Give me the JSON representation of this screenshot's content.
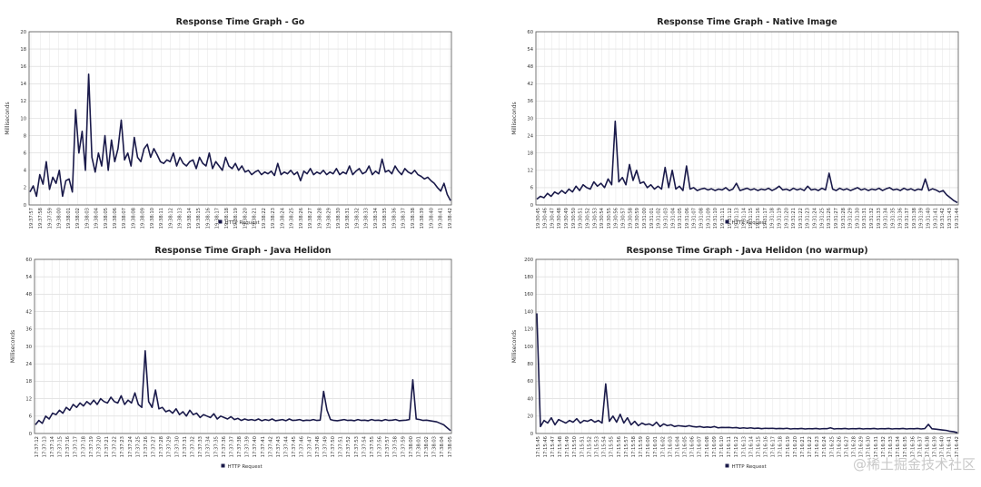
{
  "chart_data": [
    {
      "type": "line",
      "title": "Response Time Graph - Go",
      "ylabel": "Milliseconds",
      "ylim": [
        0,
        20
      ],
      "yticks": [
        0,
        2,
        4,
        6,
        8,
        10,
        12,
        14,
        16,
        18,
        20
      ],
      "xticks": [
        "19:37:57",
        "19:37:58",
        "19:37:59",
        "19:38:00",
        "19:38:01",
        "19:38:02",
        "19:38:03",
        "19:38:04",
        "19:38:05",
        "19:38:06",
        "19:38:07",
        "19:38:08",
        "19:38:09",
        "19:38:10",
        "19:38:11",
        "19:38:12",
        "19:38:13",
        "19:38:14",
        "19:38:15",
        "19:38:16",
        "19:38:17",
        "19:38:18",
        "19:38:19",
        "19:38:20",
        "19:38:21",
        "19:38:22",
        "19:38:23",
        "19:38:24",
        "19:38:25",
        "19:38:26",
        "19:38:27",
        "19:38:28",
        "19:38:29",
        "19:38:30",
        "19:38:31",
        "19:38:32",
        "19:38:33",
        "19:38:34",
        "19:38:35",
        "19:38:36",
        "19:38:37",
        "19:38:38",
        "19:38:39",
        "19:38:40",
        "19:38:41",
        "19:38:42"
      ],
      "legend": "HTTP Request",
      "series": [
        {
          "name": "HTTP Request",
          "color": "#1a1a4a",
          "values": [
            1.5,
            2.2,
            1.0,
            3.5,
            2.4,
            5.0,
            1.8,
            3.2,
            2.5,
            4.0,
            1.0,
            2.8,
            3.0,
            1.5,
            11.0,
            6.0,
            8.5,
            4.0,
            15.1,
            5.5,
            3.8,
            6.0,
            4.5,
            8.0,
            4.0,
            7.5,
            5.0,
            6.5,
            9.8,
            5.2,
            6.0,
            4.5,
            7.8,
            5.5,
            5.0,
            6.5,
            7.0,
            5.5,
            6.5,
            5.8,
            5.0,
            4.8,
            5.2,
            5.0,
            6.0,
            4.5,
            5.5,
            4.8,
            4.5,
            5.0,
            5.2,
            4.2,
            5.5,
            4.8,
            4.5,
            6.0,
            4.2,
            5.0,
            4.5,
            4.0,
            5.5,
            4.5,
            4.2,
            4.8,
            4.0,
            4.5,
            3.8,
            4.0,
            3.5,
            3.8,
            4.0,
            3.5,
            3.8,
            3.6,
            3.9,
            3.4,
            4.8,
            3.5,
            3.8,
            3.6,
            4.0,
            3.5,
            3.8,
            2.8,
            3.9,
            3.6,
            4.2,
            3.5,
            3.8,
            3.6,
            4.0,
            3.5,
            3.8,
            3.6,
            4.2,
            3.5,
            3.8,
            3.6,
            4.5,
            3.5,
            3.9,
            4.2,
            3.6,
            3.8,
            4.5,
            3.5,
            3.9,
            3.6,
            5.3,
            3.8,
            4.0,
            3.6,
            4.5,
            3.9,
            3.5,
            4.2,
            3.8,
            3.6,
            4.0,
            3.5,
            3.3,
            3.0,
            3.2,
            2.8,
            2.5,
            2.0,
            1.6,
            2.5,
            1.2,
            0.5
          ]
        }
      ]
    },
    {
      "type": "line",
      "title": "Response Time Graph - Native Image",
      "ylabel": "Milliseconds",
      "ylim": [
        0,
        60
      ],
      "yticks": [
        0,
        6,
        12,
        18,
        24,
        30,
        36,
        42,
        48,
        54,
        60
      ],
      "xticks": [
        "19:30:45",
        "19:30:46",
        "19:30:47",
        "19:30:48",
        "19:30:49",
        "19:30:50",
        "19:30:51",
        "19:30:52",
        "19:30:53",
        "19:30:54",
        "19:30:55",
        "19:30:56",
        "19:30:57",
        "19:30:58",
        "19:30:59",
        "19:31:00",
        "19:31:01",
        "19:31:02",
        "19:31:03",
        "19:31:04",
        "19:31:05",
        "19:31:06",
        "19:31:07",
        "19:31:08",
        "19:31:09",
        "19:31:10",
        "19:31:11",
        "19:31:12",
        "19:31:13",
        "19:31:14",
        "19:31:15",
        "19:31:16",
        "19:31:17",
        "19:31:18",
        "19:31:19",
        "19:31:20",
        "19:31:21",
        "19:31:22",
        "19:31:23",
        "19:31:24",
        "19:31:25",
        "19:31:26",
        "19:31:27",
        "19:31:28",
        "19:31:29",
        "19:31:30",
        "19:31:31",
        "19:31:32",
        "19:31:33",
        "19:31:34",
        "19:31:35",
        "19:31:36",
        "19:31:37",
        "19:31:38",
        "19:31:39",
        "19:31:40",
        "19:31:41",
        "19:31:42",
        "19:31:43",
        "19:31:44"
      ],
      "legend": "HTTP Request",
      "series": [
        {
          "name": "HTTP Request",
          "color": "#1a1a4a",
          "values": [
            2.0,
            3.0,
            2.5,
            4.0,
            3.0,
            4.5,
            3.8,
            5.0,
            4.0,
            5.5,
            4.5,
            6.5,
            5.0,
            7.0,
            6.0,
            5.5,
            8.0,
            6.5,
            7.5,
            6.0,
            9.0,
            7.0,
            29.0,
            8.0,
            9.5,
            7.0,
            14.0,
            8.5,
            12.0,
            7.5,
            8.0,
            6.0,
            7.0,
            5.5,
            6.5,
            5.5,
            13.0,
            6.0,
            12.0,
            5.5,
            6.5,
            5.0,
            13.5,
            5.5,
            6.0,
            5.0,
            5.5,
            5.8,
            5.2,
            5.6,
            5.0,
            5.5,
            5.2,
            6.0,
            5.0,
            5.5,
            7.5,
            5.0,
            5.4,
            5.8,
            5.2,
            5.6,
            5.0,
            5.5,
            5.2,
            5.8,
            5.0,
            5.6,
            6.5,
            5.2,
            5.5,
            5.0,
            5.8,
            5.2,
            5.6,
            5.0,
            6.5,
            5.2,
            5.5,
            5.0,
            5.8,
            5.2,
            11.0,
            5.5,
            5.0,
            5.8,
            5.2,
            5.6,
            5.0,
            5.5,
            6.0,
            5.2,
            5.6,
            5.0,
            5.5,
            5.2,
            5.8,
            5.0,
            5.6,
            6.0,
            5.2,
            5.5,
            5.0,
            5.8,
            5.2,
            5.6,
            5.0,
            5.5,
            5.2,
            9.0,
            5.0,
            5.6,
            5.2,
            4.5,
            5.0,
            3.5,
            2.5,
            1.5,
            0.8
          ]
        }
      ]
    },
    {
      "type": "line",
      "title": "Response Time Graph - Java Helidon",
      "ylabel": "Milliseconds",
      "ylim": [
        0,
        60
      ],
      "yticks": [
        0,
        6,
        12,
        18,
        24,
        30,
        36,
        42,
        48,
        54,
        60
      ],
      "xticks": [
        "17:37:12",
        "17:37:13",
        "17:37:14",
        "17:37:15",
        "17:37:16",
        "17:37:17",
        "17:37:18",
        "17:37:19",
        "17:37:20",
        "17:37:21",
        "17:37:22",
        "17:37:23",
        "17:37:24",
        "17:37:25",
        "17:37:26",
        "17:37:27",
        "17:37:28",
        "17:37:29",
        "17:37:30",
        "17:37:31",
        "17:37:32",
        "17:37:33",
        "17:37:34",
        "17:37:35",
        "17:37:36",
        "17:37:37",
        "17:37:38",
        "17:37:39",
        "17:37:40",
        "17:37:41",
        "17:37:42",
        "17:37:43",
        "17:37:44",
        "17:37:45",
        "17:37:46",
        "17:37:47",
        "17:37:48",
        "17:37:49",
        "17:37:50",
        "17:37:51",
        "17:37:52",
        "17:37:53",
        "17:37:54",
        "17:37:55",
        "17:37:56",
        "17:37:57",
        "17:37:58",
        "17:37:59",
        "17:38:00",
        "17:38:01",
        "17:38:02",
        "17:38:03",
        "17:38:04",
        "17:38:05"
      ],
      "legend": "HTTP Request",
      "series": [
        {
          "name": "HTTP Request",
          "color": "#1a1a4a",
          "values": [
            3.0,
            4.5,
            3.5,
            6.0,
            5.0,
            7.0,
            6.5,
            8.0,
            7.0,
            9.0,
            8.0,
            10.0,
            9.0,
            10.5,
            9.5,
            11.0,
            10.0,
            11.5,
            10.0,
            12.0,
            11.0,
            10.5,
            12.5,
            11.0,
            10.5,
            13.0,
            10.0,
            11.5,
            10.5,
            14.0,
            10.0,
            9.0,
            28.5,
            11.0,
            9.0,
            15.0,
            8.5,
            9.0,
            7.5,
            8.0,
            7.0,
            8.5,
            6.5,
            7.5,
            6.0,
            8.0,
            6.5,
            7.0,
            5.5,
            6.5,
            6.0,
            5.5,
            6.8,
            5.0,
            6.0,
            5.5,
            5.0,
            5.8,
            4.8,
            5.2,
            4.5,
            5.0,
            4.6,
            4.8,
            4.5,
            5.0,
            4.4,
            4.8,
            4.5,
            5.0,
            4.4,
            4.6,
            4.8,
            4.4,
            5.0,
            4.5,
            4.6,
            4.8,
            4.4,
            4.6,
            4.5,
            4.8,
            4.5,
            4.6,
            14.5,
            8.0,
            4.8,
            4.5,
            4.4,
            4.6,
            4.8,
            4.5,
            4.6,
            4.4,
            4.8,
            4.5,
            4.6,
            4.4,
            4.8,
            4.5,
            4.6,
            4.4,
            4.8,
            4.5,
            4.6,
            4.8,
            4.4,
            4.5,
            4.6,
            4.8,
            18.5,
            5.0,
            4.8,
            4.5,
            4.6,
            4.4,
            4.2,
            4.0,
            3.5,
            3.0,
            2.0,
            1.0
          ]
        }
      ]
    },
    {
      "type": "line",
      "title": "Response Time Graph - Java Helidon (no warmup)",
      "ylabel": "Milliseconds",
      "ylim": [
        0,
        200
      ],
      "yticks": [
        0,
        20,
        40,
        60,
        80,
        100,
        120,
        140,
        160,
        180,
        200
      ],
      "xticks": [
        "17:15:45",
        "17:15:46",
        "17:15:47",
        "17:15:48",
        "17:15:49",
        "17:15:50",
        "17:15:51",
        "17:15:52",
        "17:15:53",
        "17:15:54",
        "17:15:55",
        "17:15:56",
        "17:15:57",
        "17:15:58",
        "17:15:59",
        "17:16:00",
        "17:16:01",
        "17:16:02",
        "17:16:03",
        "17:16:04",
        "17:16:05",
        "17:16:06",
        "17:16:07",
        "17:16:08",
        "17:16:09",
        "17:16:10",
        "17:16:11",
        "17:16:12",
        "17:16:13",
        "17:16:14",
        "17:16:15",
        "17:16:16",
        "17:16:17",
        "17:16:18",
        "17:16:19",
        "17:16:20",
        "17:16:21",
        "17:16:22",
        "17:16:23",
        "17:16:24",
        "17:16:25",
        "17:16:26",
        "17:16:27",
        "17:16:28",
        "17:16:29",
        "17:16:30",
        "17:16:31",
        "17:16:32",
        "17:16:33",
        "17:16:34",
        "17:16:35",
        "17:16:36",
        "17:16:37",
        "17:16:38",
        "17:16:39",
        "17:16:40",
        "17:16:41",
        "17:16:42"
      ],
      "legend": "HTTP Request",
      "series": [
        {
          "name": "HTTP Request",
          "color": "#1a1a4a",
          "values": [
            138,
            8,
            15,
            12,
            18,
            10,
            16,
            14,
            12,
            15,
            13,
            17,
            12,
            15,
            14,
            16,
            13,
            15,
            12,
            57,
            14,
            20,
            13,
            22,
            12,
            18,
            10,
            14,
            9,
            12,
            10,
            11,
            9,
            13,
            8,
            11,
            9,
            10,
            8,
            9,
            8.5,
            8,
            9,
            8,
            7.5,
            8,
            7,
            7.5,
            7,
            8,
            6.5,
            7,
            6.8,
            7,
            6.5,
            6.8,
            6,
            6.5,
            6,
            6.5,
            5.8,
            6.2,
            5.5,
            6,
            5.8,
            6,
            5.5,
            5.8,
            5.5,
            6,
            5.2,
            5.6,
            5.4,
            5.8,
            5.2,
            5.6,
            5.4,
            5.8,
            5.2,
            5.6,
            5.5,
            6.5,
            5.2,
            5.6,
            5.4,
            5.8,
            5.2,
            5.6,
            5.4,
            5.8,
            5.2,
            5.6,
            5.4,
            5.8,
            5.2,
            5.6,
            5.4,
            5.8,
            5.2,
            5.6,
            5.4,
            5.8,
            5.2,
            5.6,
            5.4,
            5.8,
            5.2,
            5.6,
            10.5,
            5.4,
            5,
            4.5,
            4,
            3.5,
            2.5,
            2,
            1
          ]
        }
      ]
    }
  ],
  "watermark": "@稀土掘金技术社区"
}
